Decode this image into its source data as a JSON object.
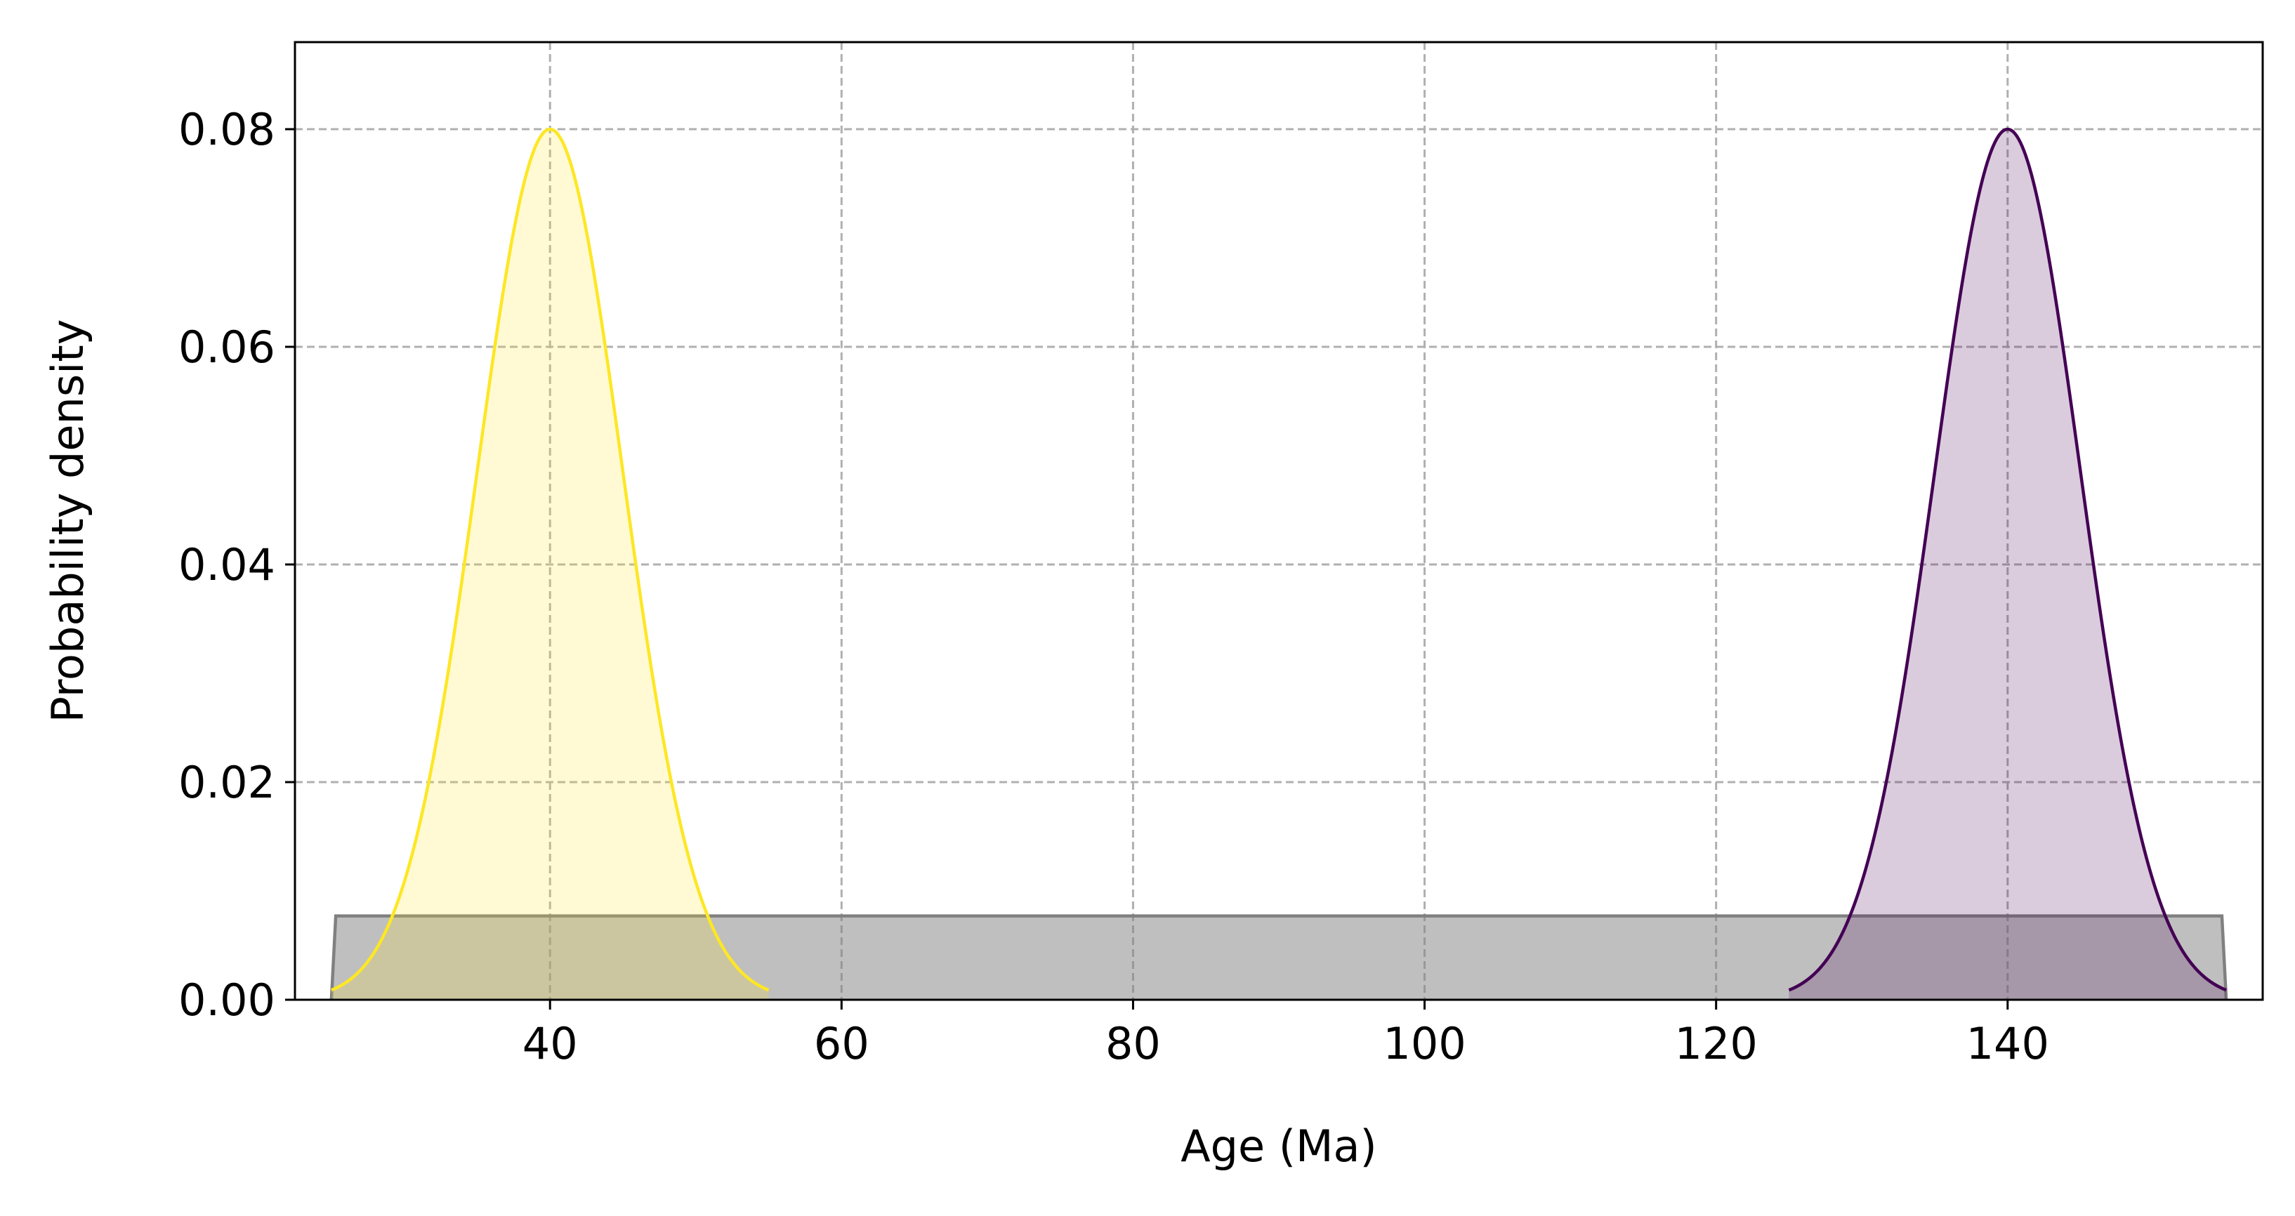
{
  "chart_data": {
    "type": "area",
    "title": "",
    "xlabel": "Age (Ma)",
    "ylabel": "Probability density",
    "xlim": [
      22.5,
      157.5
    ],
    "ylim": [
      0.0,
      0.088
    ],
    "grid": true,
    "x_ticks": [
      40,
      60,
      80,
      100,
      120,
      140
    ],
    "x_tick_labels": [
      "40",
      "60",
      "80",
      "100",
      "120",
      "140"
    ],
    "y_ticks": [
      0.0,
      0.02,
      0.04,
      0.06,
      0.08
    ],
    "y_tick_labels": [
      "0.00",
      "0.02",
      "0.04",
      "0.06",
      "0.08"
    ],
    "series": [
      {
        "kind": "gaussian",
        "mean": 40,
        "sd": 5,
        "peak": 0.08,
        "x_range": [
          25,
          55
        ],
        "line_color": "#fde725",
        "fill_color": "#fde725",
        "fill_opacity": 0.2
      },
      {
        "kind": "gaussian",
        "mean": 140,
        "sd": 5,
        "peak": 0.08,
        "x_range": [
          125,
          155
        ],
        "line_color": "#440154",
        "fill_color": "#440154",
        "fill_opacity": 0.2
      },
      {
        "kind": "uniform",
        "x_range": [
          25,
          155
        ],
        "height": 0.0077,
        "line_color": "#808080",
        "fill_color": "#808080",
        "fill_opacity": 0.5
      }
    ]
  }
}
